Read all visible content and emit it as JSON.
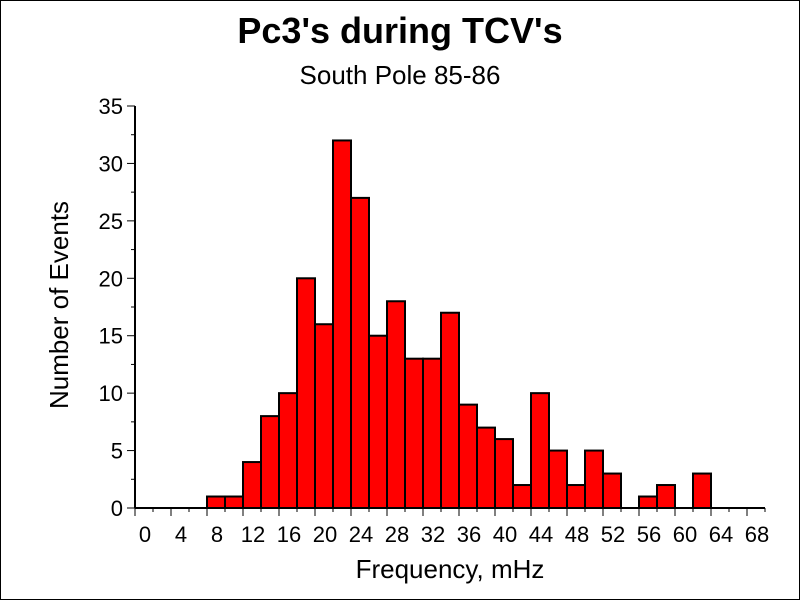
{
  "chart_data": {
    "type": "bar",
    "title": "Pc3's during TCV's",
    "subtitle": "South Pole 85-86",
    "xlabel": "Frequency, mHz",
    "ylabel": "Number of Events",
    "xlim": [
      0,
      70
    ],
    "ylim": [
      0,
      35
    ],
    "bin_width": 2,
    "y_ticks": [
      0,
      5,
      10,
      15,
      20,
      25,
      30,
      35
    ],
    "x_tick_labels": [
      "0",
      "4",
      "8",
      "12",
      "16",
      "20",
      "24",
      "28",
      "32",
      "36",
      "40",
      "44",
      "48",
      "52",
      "56",
      "60",
      "64",
      "68"
    ],
    "bins": [
      {
        "x": 0,
        "value": 0
      },
      {
        "x": 2,
        "value": 0
      },
      {
        "x": 4,
        "value": 0
      },
      {
        "x": 6,
        "value": 0
      },
      {
        "x": 8,
        "value": 1
      },
      {
        "x": 10,
        "value": 1
      },
      {
        "x": 12,
        "value": 4
      },
      {
        "x": 14,
        "value": 8
      },
      {
        "x": 16,
        "value": 10
      },
      {
        "x": 18,
        "value": 20
      },
      {
        "x": 20,
        "value": 16
      },
      {
        "x": 22,
        "value": 32
      },
      {
        "x": 24,
        "value": 27
      },
      {
        "x": 26,
        "value": 15
      },
      {
        "x": 28,
        "value": 18
      },
      {
        "x": 30,
        "value": 13
      },
      {
        "x": 32,
        "value": 13
      },
      {
        "x": 34,
        "value": 17
      },
      {
        "x": 36,
        "value": 9
      },
      {
        "x": 38,
        "value": 7
      },
      {
        "x": 40,
        "value": 6
      },
      {
        "x": 42,
        "value": 2
      },
      {
        "x": 44,
        "value": 10
      },
      {
        "x": 46,
        "value": 5
      },
      {
        "x": 48,
        "value": 2
      },
      {
        "x": 50,
        "value": 5
      },
      {
        "x": 52,
        "value": 3
      },
      {
        "x": 54,
        "value": 0
      },
      {
        "x": 56,
        "value": 1
      },
      {
        "x": 58,
        "value": 2
      },
      {
        "x": 60,
        "value": 0
      },
      {
        "x": 62,
        "value": 3
      },
      {
        "x": 64,
        "value": 0
      },
      {
        "x": 66,
        "value": 0
      },
      {
        "x": 68,
        "value": 0
      }
    ],
    "bar_color": "#ff0000",
    "edge_color": "#000000"
  }
}
